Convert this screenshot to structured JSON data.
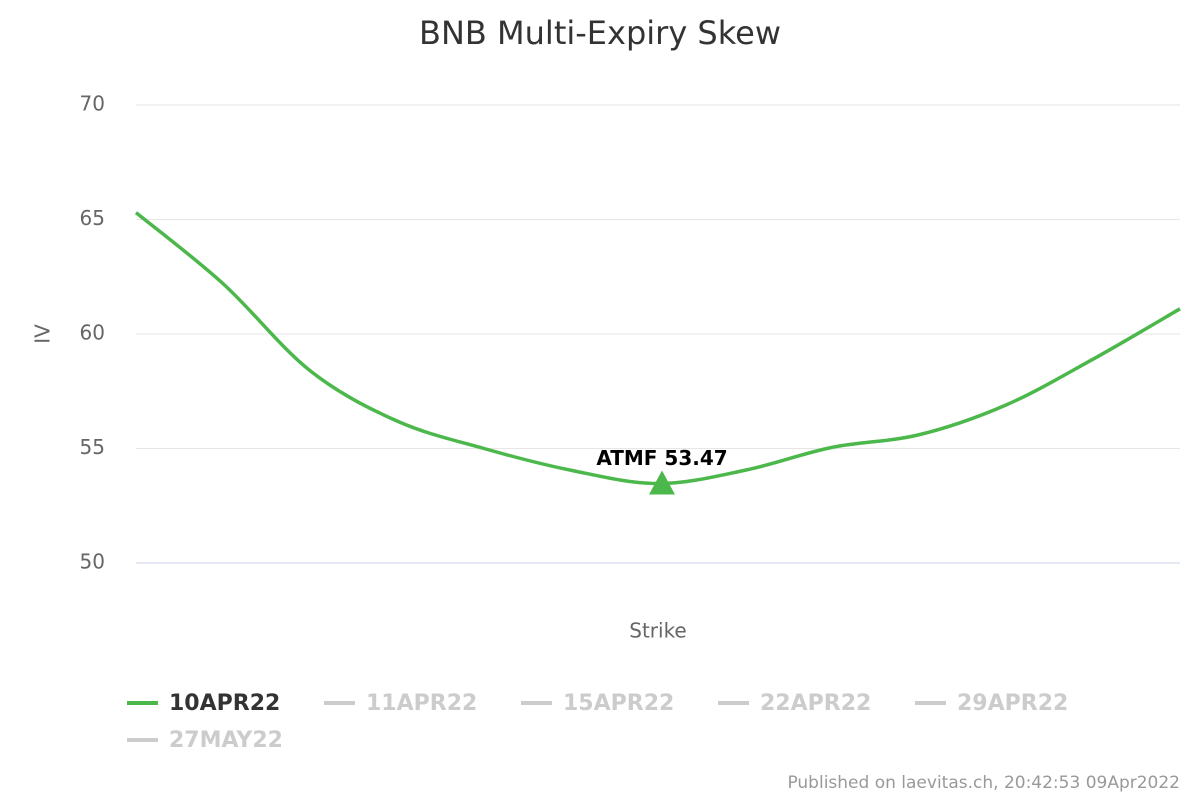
{
  "chart_data": {
    "type": "line",
    "title": "BNB Multi-Expiry Skew",
    "x_label": "Strike",
    "y_label": "IV",
    "categories": [
      null,
      null,
      null,
      null,
      null,
      null,
      null,
      null,
      null,
      null,
      null,
      null,
      null
    ],
    "series": [
      {
        "name": "10APR22",
        "color": "#4cb84c",
        "visible": true,
        "values": [
          65.3,
          62.2,
          58.4,
          56.2,
          55.0,
          54.05,
          53.47,
          54.05,
          55.05,
          55.6,
          56.9,
          58.9,
          61.1
        ]
      },
      {
        "name": "11APR22",
        "color": "#cccccc",
        "visible": false,
        "values": [
          null,
          null,
          null,
          null,
          null,
          null,
          null,
          null,
          null,
          null,
          null,
          null,
          null
        ]
      },
      {
        "name": "15APR22",
        "color": "#cccccc",
        "visible": false,
        "values": [
          null,
          null,
          null,
          null,
          null,
          null,
          null,
          null,
          null,
          null,
          null,
          null,
          null
        ]
      },
      {
        "name": "22APR22",
        "color": "#cccccc",
        "visible": false,
        "values": [
          null,
          null,
          null,
          null,
          null,
          null,
          null,
          null,
          null,
          null,
          null,
          null,
          null
        ]
      },
      {
        "name": "29APR22",
        "color": "#cccccc",
        "visible": false,
        "values": [
          null,
          null,
          null,
          null,
          null,
          null,
          null,
          null,
          null,
          null,
          null,
          null,
          null
        ]
      },
      {
        "name": "27MAY22",
        "color": "#cccccc",
        "visible": false,
        "values": [
          null,
          null,
          null,
          null,
          null,
          null,
          null,
          null,
          null,
          null,
          null,
          null,
          null
        ]
      }
    ],
    "atmf": {
      "text": "ATMF 53.47",
      "value": 53.47
    },
    "ylim": [
      50,
      70
    ],
    "yticks": [
      50,
      55,
      60,
      65,
      70
    ],
    "grid": true,
    "credit": "Published on laevitas.ch, 20:42:53 09Apr2022"
  }
}
